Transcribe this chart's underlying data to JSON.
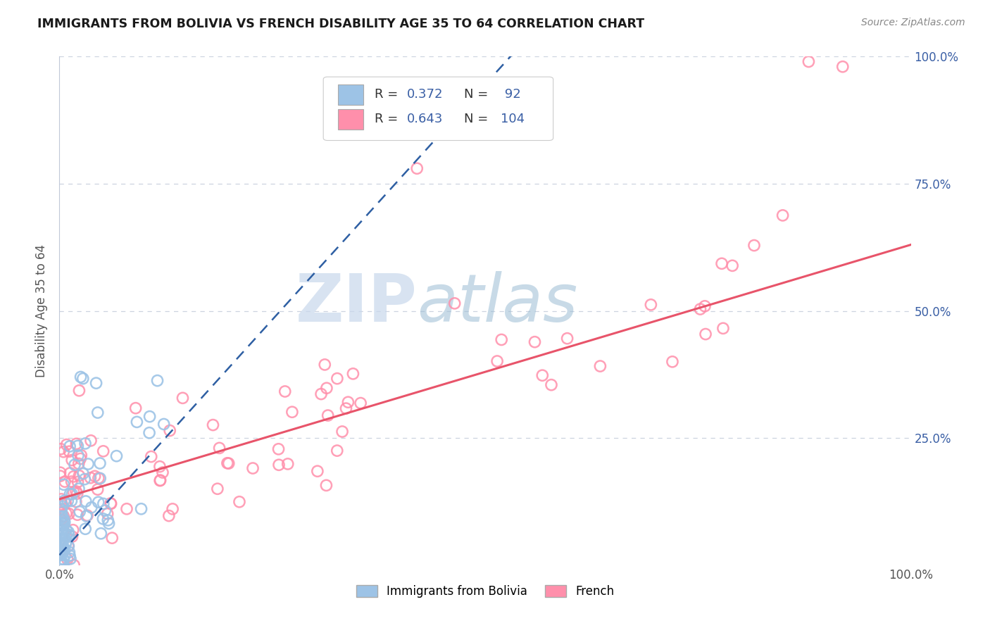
{
  "title": "IMMIGRANTS FROM BOLIVIA VS FRENCH DISABILITY AGE 35 TO 64 CORRELATION CHART",
  "source": "Source: ZipAtlas.com",
  "ylabel": "Disability Age 35 to 64",
  "color_bolivia": "#9DC3E6",
  "color_french": "#FF8FAB",
  "color_line_bolivia": "#2E5FA3",
  "color_line_french": "#E8546A",
  "color_grid": "#C0C8D8",
  "watermark_zip": "ZIP",
  "watermark_atlas": "atlas",
  "legend_r1_label": "R = ",
  "legend_r1_val": "0.372",
  "legend_n1_label": "N = ",
  "legend_n1_val": " 92",
  "legend_r2_label": "R = ",
  "legend_r2_val": "0.643",
  "legend_n2_label": "N = ",
  "legend_n2_val": "104",
  "text_color_blue": "#3A5FA5",
  "text_color_dark": "#333333"
}
